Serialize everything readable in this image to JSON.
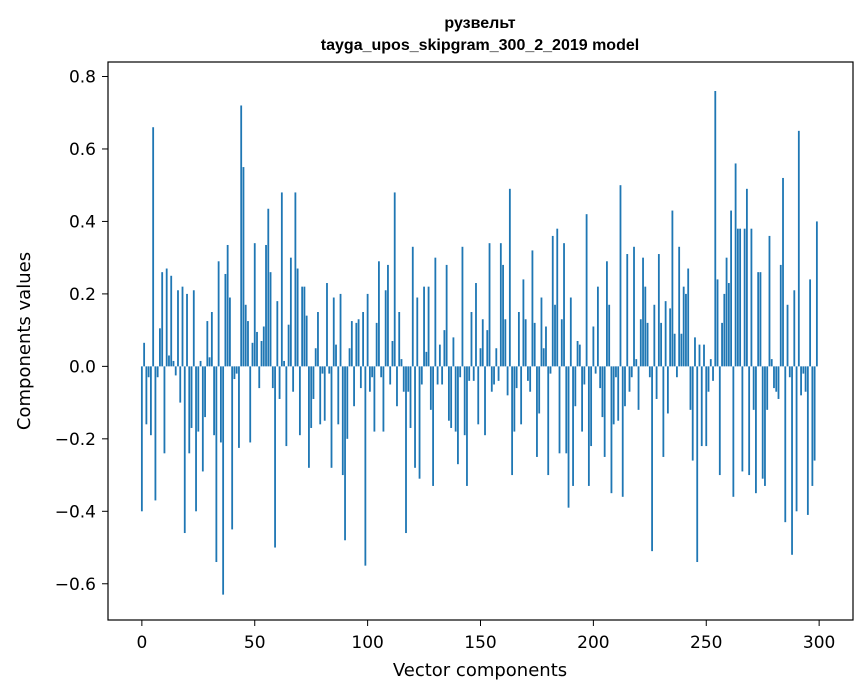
{
  "chart_data": {
    "type": "bar",
    "title": "рузвельт",
    "subtitle": "tayga_upos_skipgram_300_2_2019 model",
    "xlabel": "Vector components",
    "ylabel": "Components values",
    "xlim": [
      -15,
      315
    ],
    "ylim": [
      -0.7,
      0.84
    ],
    "xticks": [
      0,
      50,
      100,
      150,
      200,
      250,
      300
    ],
    "xtick_labels": [
      "0",
      "50",
      "100",
      "150",
      "200",
      "250",
      "300"
    ],
    "yticks": [
      -0.6,
      -0.4,
      -0.2,
      0.0,
      0.2,
      0.4,
      0.6,
      0.8
    ],
    "ytick_labels": [
      "−0.6",
      "−0.4",
      "−0.2",
      "0.0",
      "0.2",
      "0.4",
      "0.6",
      "0.8"
    ],
    "bar_color": "#1f77b4",
    "grid": false,
    "x": "indices 0..299",
    "values": [
      -0.4,
      0.065,
      -0.16,
      -0.03,
      -0.19,
      0.66,
      -0.37,
      -0.03,
      0.105,
      0.26,
      -0.24,
      0.27,
      0.03,
      0.25,
      0.015,
      -0.025,
      0.21,
      -0.1,
      0.22,
      -0.46,
      0.2,
      -0.24,
      -0.17,
      0.21,
      -0.4,
      -0.18,
      0.015,
      -0.29,
      -0.14,
      0.125,
      0.025,
      0.15,
      -0.19,
      -0.54,
      0.29,
      -0.21,
      -0.63,
      0.255,
      0.335,
      0.19,
      -0.45,
      -0.035,
      -0.02,
      -0.225,
      0.72,
      0.55,
      0.17,
      0.125,
      -0.21,
      0.065,
      0.34,
      0.095,
      -0.06,
      0.07,
      0.11,
      0.335,
      0.435,
      0.26,
      -0.06,
      -0.5,
      0.18,
      -0.09,
      0.48,
      0.015,
      -0.22,
      0.115,
      0.3,
      -0.07,
      0.48,
      0.27,
      -0.19,
      0.22,
      0.22,
      0.14,
      -0.28,
      -0.17,
      -0.09,
      0.05,
      0.15,
      -0.16,
      -0.02,
      -0.15,
      0.23,
      -0.02,
      -0.28,
      0.19,
      0.06,
      -0.16,
      0.2,
      -0.3,
      -0.48,
      -0.2,
      0.05,
      0.125,
      -0.11,
      0.12,
      0.13,
      -0.06,
      0.15,
      -0.55,
      0.2,
      -0.07,
      -0.03,
      -0.18,
      0.12,
      0.29,
      -0.03,
      -0.18,
      0.21,
      0.28,
      -0.05,
      0.07,
      0.48,
      -0.11,
      0.15,
      0.02,
      -0.07,
      -0.46,
      -0.07,
      -0.17,
      0.33,
      -0.28,
      0.19,
      -0.31,
      -0.05,
      0.22,
      0.04,
      0.22,
      -0.12,
      -0.33,
      0.3,
      -0.05,
      0.06,
      -0.05,
      0.1,
      0.28,
      -0.15,
      -0.17,
      0.08,
      -0.18,
      -0.27,
      -0.03,
      0.33,
      -0.19,
      -0.33,
      -0.04,
      0.15,
      -0.04,
      0.23,
      -0.16,
      0.05,
      0.13,
      -0.19,
      0.1,
      0.34,
      -0.07,
      -0.05,
      0.05,
      -0.04,
      0.34,
      0.28,
      0.13,
      -0.08,
      0.49,
      -0.3,
      -0.18,
      -0.06,
      0.15,
      -0.16,
      0.24,
      0.13,
      -0.04,
      -0.07,
      0.32,
      0.12,
      -0.25,
      -0.13,
      0.19,
      0.05,
      0.11,
      -0.3,
      -0.02,
      0.36,
      0.17,
      0.38,
      -0.24,
      0.13,
      0.34,
      -0.24,
      -0.39,
      0.19,
      -0.33,
      -0.11,
      0.07,
      0.06,
      -0.18,
      -0.05,
      0.42,
      -0.33,
      -0.22,
      0.11,
      -0.02,
      0.22,
      -0.06,
      -0.14,
      -0.25,
      0.29,
      0.17,
      -0.35,
      -0.16,
      -0.03,
      -0.15,
      0.5,
      -0.36,
      -0.11,
      0.31,
      -0.07,
      -0.03,
      0.33,
      0.02,
      -0.12,
      0.13,
      0.3,
      0.22,
      0.12,
      -0.03,
      -0.51,
      0.17,
      -0.09,
      0.31,
      0.12,
      -0.25,
      0.18,
      -0.13,
      0.16,
      0.43,
      0.09,
      -0.03,
      0.33,
      0.09,
      0.22,
      0.2,
      0.27,
      -0.12,
      -0.26,
      0.08,
      -0.54,
      0.06,
      -0.22,
      0.06,
      -0.22,
      -0.07,
      0.02,
      -0.04,
      0.76,
      0.24,
      -0.3,
      0.12,
      0.2,
      0.3,
      0.23,
      0.43,
      -0.36,
      0.56,
      0.38,
      0.38,
      -0.29,
      0.38,
      0.49,
      -0.3,
      0.38,
      -0.12,
      -0.35,
      0.26,
      0.26,
      -0.31,
      -0.33,
      -0.12,
      0.36,
      0.02,
      -0.06,
      -0.07,
      -0.09,
      0.28,
      0.52,
      -0.43,
      0.17,
      -0.03,
      -0.52,
      0.21,
      -0.4,
      0.65,
      -0.08,
      -0.02,
      -0.07,
      -0.41,
      0.24,
      -0.33,
      -0.26,
      0.4
    ]
  }
}
